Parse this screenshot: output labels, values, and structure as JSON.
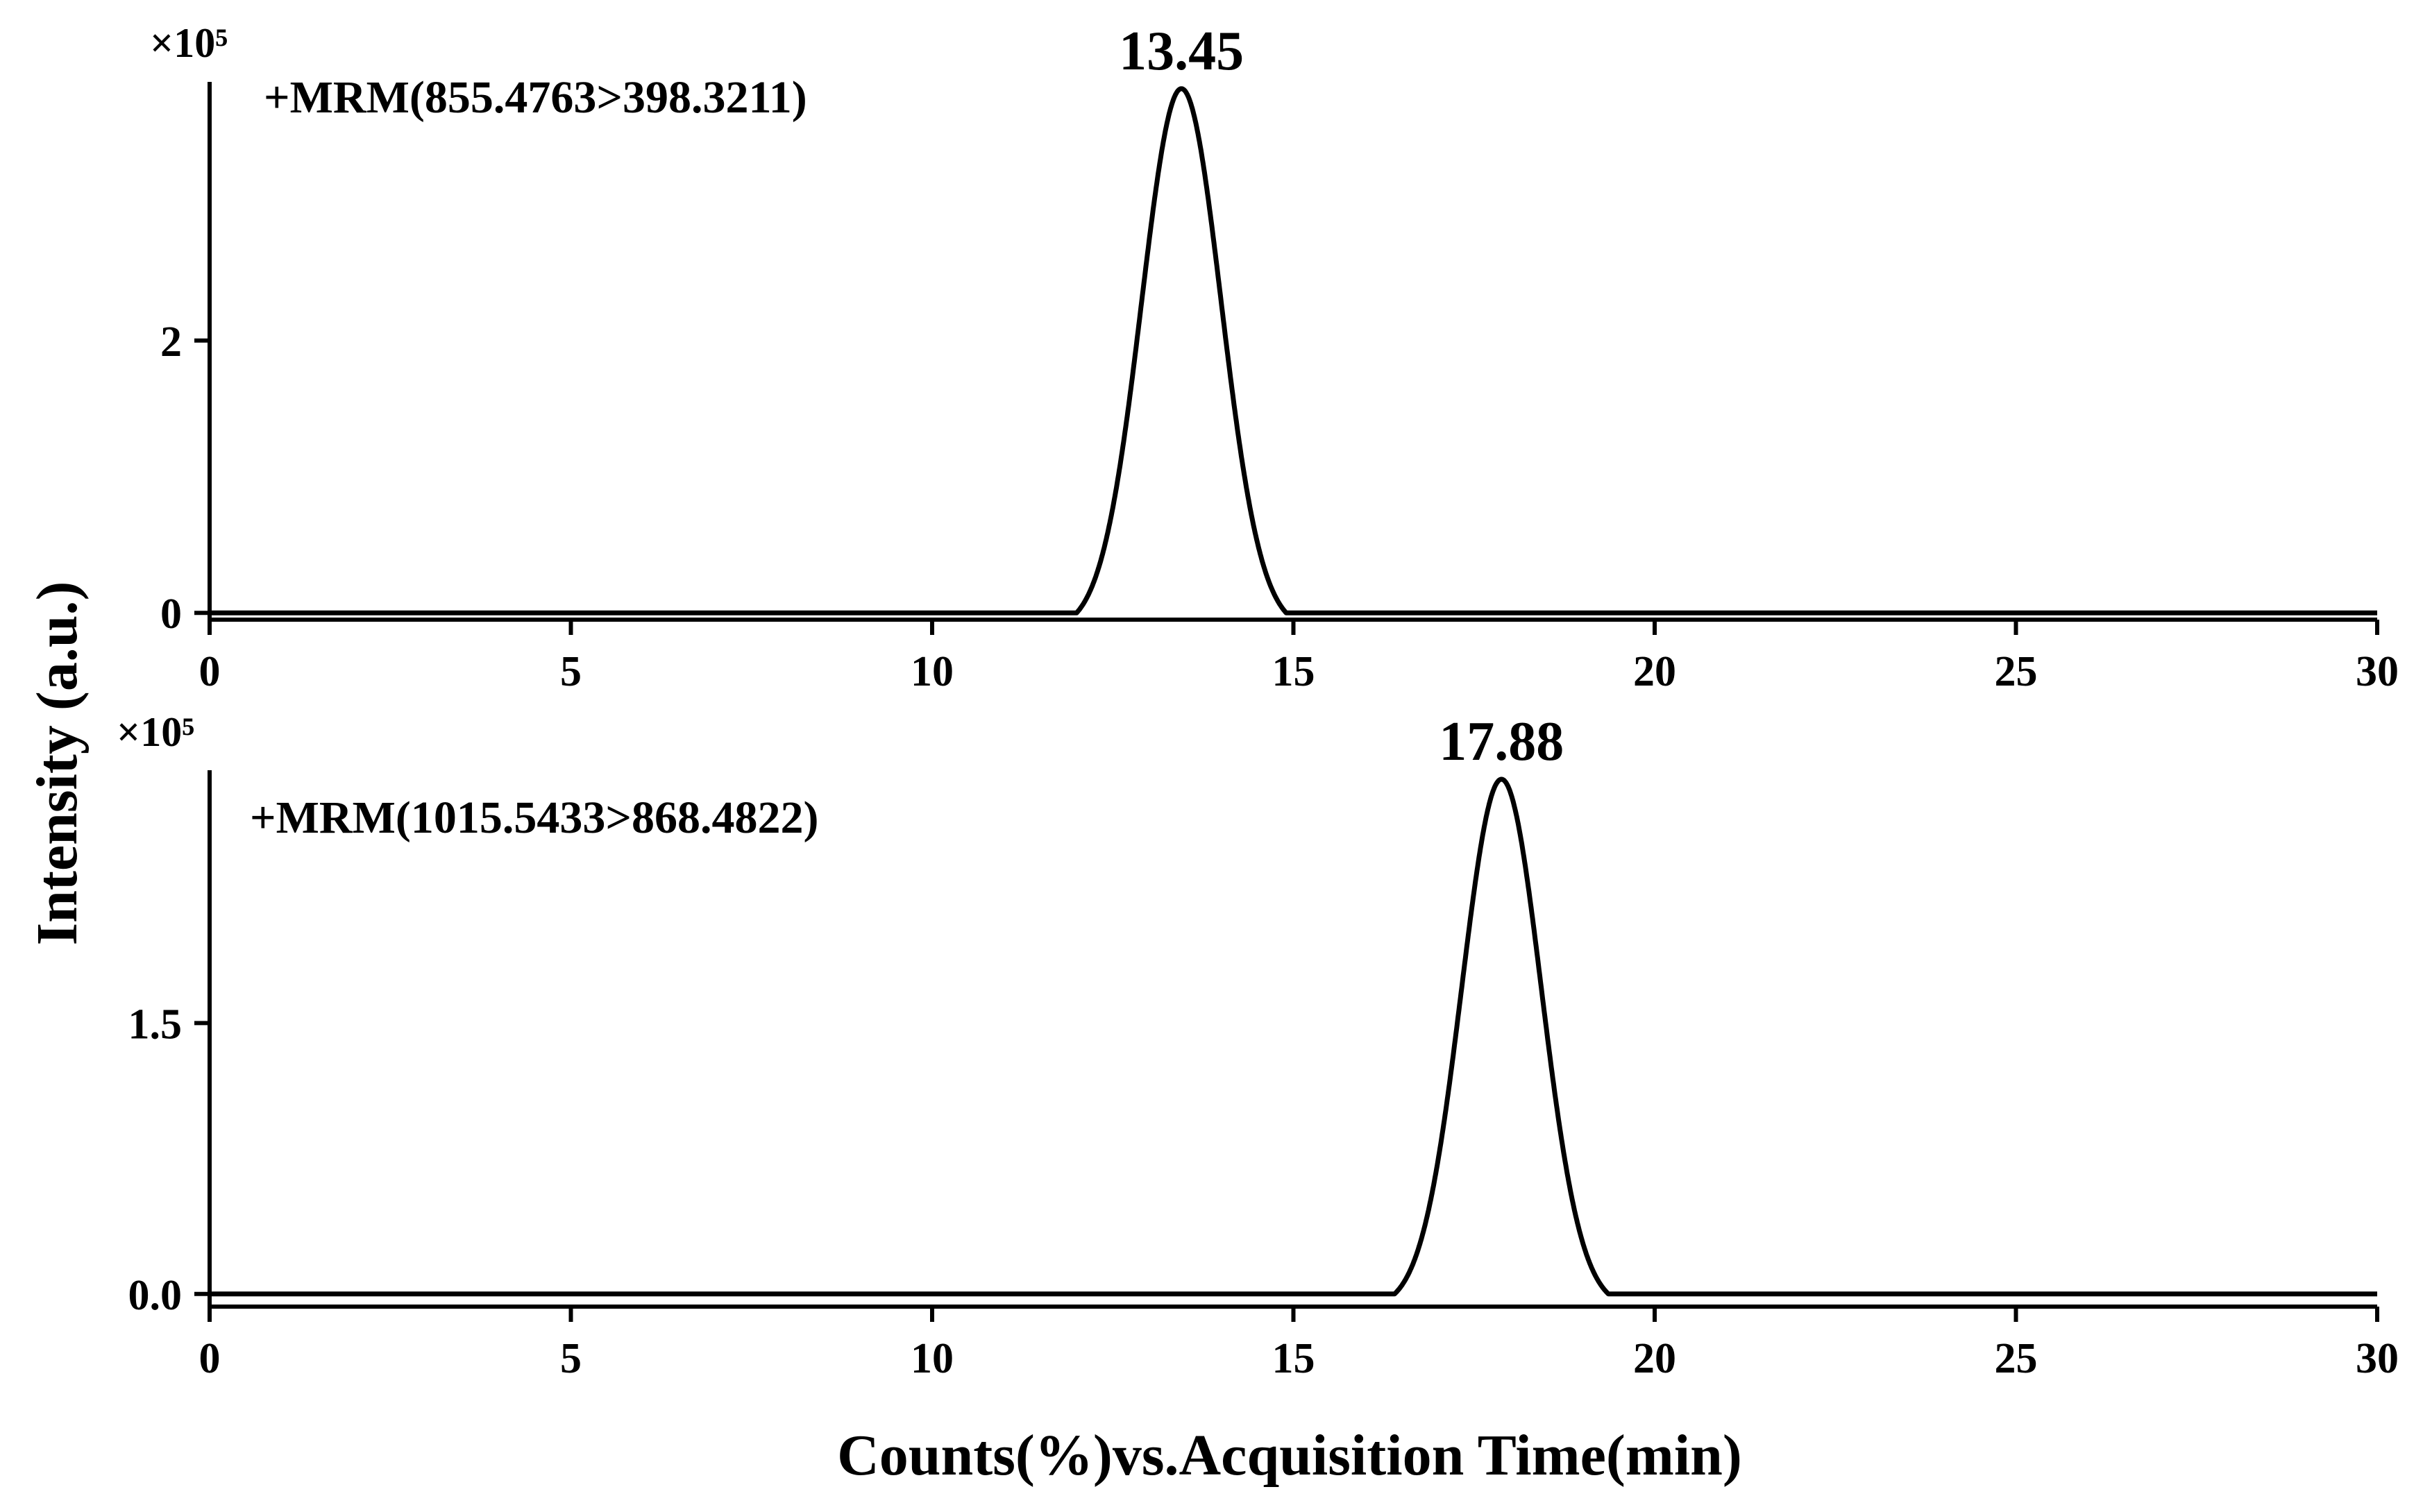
{
  "shared": {
    "ylabel": "Intensity (a.u.)",
    "xlabel": "Counts(%)vs.Acquisition Time(min)"
  },
  "chart_data": [
    {
      "type": "line",
      "annotation": "+MRM(855.4763>398.3211)",
      "y_multiplier": "×10⁵",
      "x_ticks": [
        "0",
        "5",
        "10",
        "15",
        "20",
        "25",
        "30"
      ],
      "y_ticks": [
        "0",
        "2"
      ],
      "xlim": [
        0,
        30
      ],
      "ylim": [
        -0.05,
        3.9
      ],
      "peak_label": "13.45",
      "peak": {
        "center": 13.45,
        "height": 3.85,
        "sigma": 0.55,
        "start": 12.0,
        "end": 15.0
      },
      "baseline": 0.0,
      "line_color": "#000000"
    },
    {
      "type": "line",
      "annotation": "+MRM(1015.5433>868.4822)",
      "y_multiplier": "×10⁵",
      "x_ticks": [
        "0",
        "5",
        "10",
        "15",
        "20",
        "25",
        "30"
      ],
      "y_ticks": [
        "0.0",
        "1.5"
      ],
      "xlim": [
        0,
        30
      ],
      "ylim": [
        -0.07,
        2.9
      ],
      "peak_label": "17.88",
      "peak": {
        "center": 17.88,
        "height": 2.85,
        "sigma": 0.55,
        "start": 16.4,
        "end": 19.4
      },
      "baseline": 0.0,
      "line_color": "#000000"
    }
  ]
}
